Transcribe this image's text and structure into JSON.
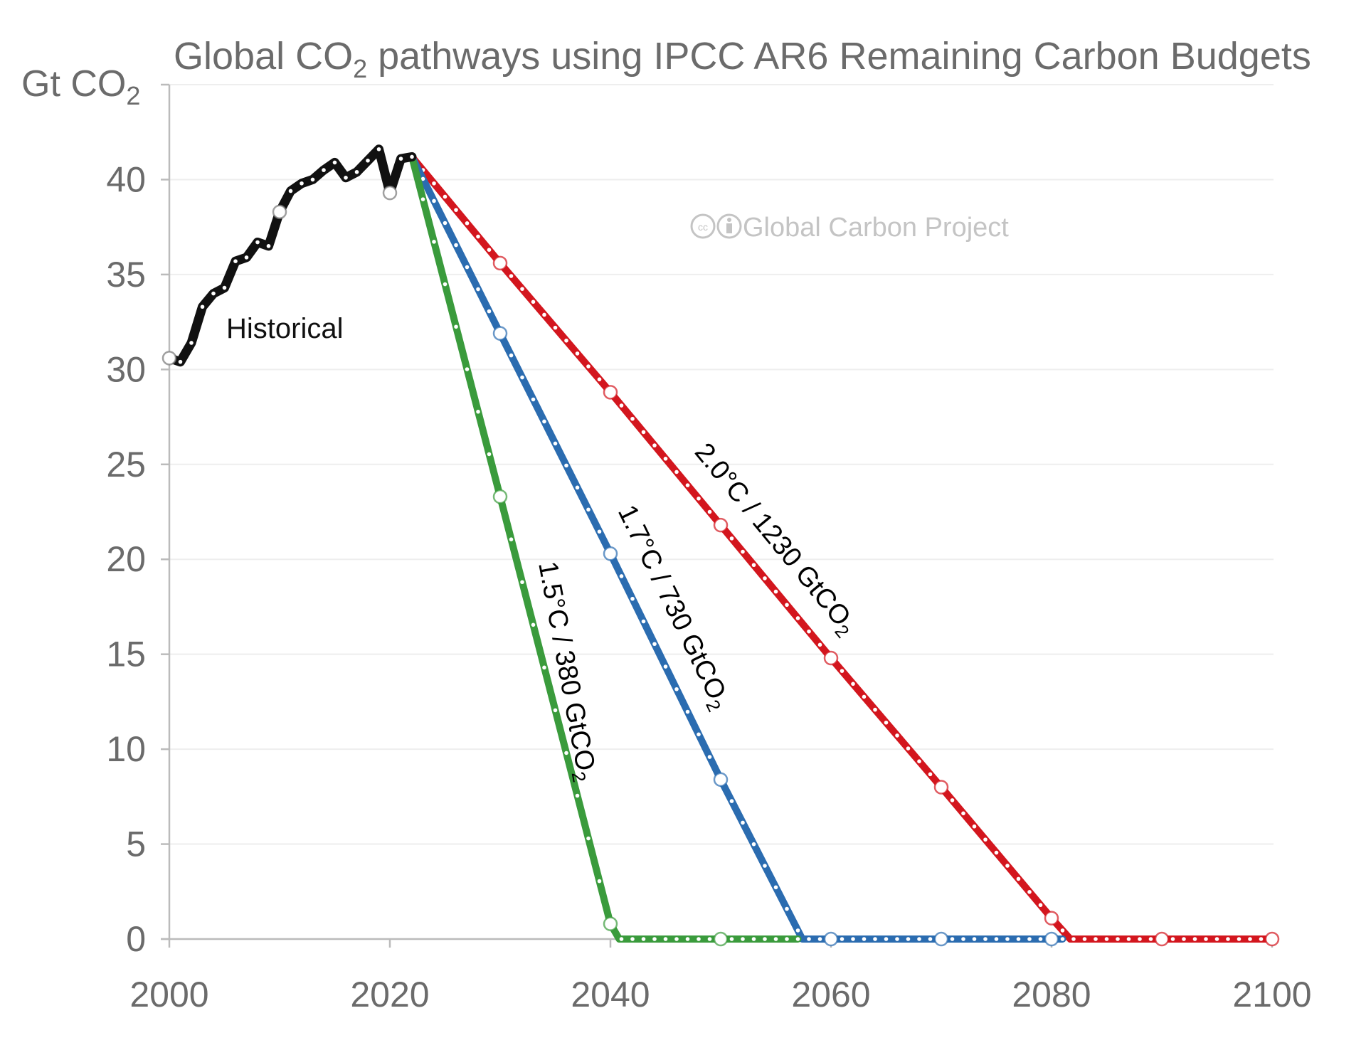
{
  "chart_data": {
    "type": "line",
    "title": "Global CO",
    "title_sub": "2",
    "title_rest": " pathways using IPCC AR6 Remaining Carbon Budgets",
    "ylabel": "Gt CO",
    "ylabel_sub": "2",
    "xlabel": "",
    "xlim": [
      2000,
      2100
    ],
    "ylim": [
      0,
      45
    ],
    "x_ticks": [
      2000,
      2020,
      2040,
      2060,
      2080,
      2100
    ],
    "x_tick_labels": [
      "2000",
      "2020",
      "2040",
      "2060",
      "2080",
      "2100"
    ],
    "y_ticks": [
      0,
      5,
      10,
      15,
      20,
      25,
      30,
      35,
      40
    ],
    "y_tick_labels": [
      "0",
      "5",
      "10",
      "15",
      "20",
      "25",
      "30",
      "35",
      "40"
    ],
    "grid": true,
    "watermark": "Global Carbon Project",
    "series": [
      {
        "name": "Historical",
        "label": "Historical",
        "color": "#111111",
        "x": [
          2000,
          2001,
          2002,
          2003,
          2004,
          2005,
          2006,
          2007,
          2008,
          2009,
          2010,
          2011,
          2012,
          2013,
          2014,
          2015,
          2016,
          2017,
          2018,
          2019,
          2020,
          2021,
          2022
        ],
        "y": [
          30.6,
          30.4,
          31.4,
          33.3,
          34.0,
          34.3,
          35.7,
          35.9,
          36.7,
          36.5,
          38.3,
          39.4,
          39.8,
          40.0,
          40.5,
          40.9,
          40.1,
          40.4,
          41.0,
          41.6,
          39.3,
          41.1,
          41.2
        ],
        "open_markers": [
          2000,
          2010,
          2020
        ]
      },
      {
        "name": "1.5°C / 380 GtCO2",
        "label": "1.5°C / 380 GtCO",
        "label_sub": "2",
        "color": "#3a9b3c",
        "x": [
          2022,
          2030,
          2040,
          2040.8,
          2050,
          2060,
          2070,
          2080,
          2090,
          2100
        ],
        "y": [
          41.2,
          23.3,
          0.8,
          0,
          0,
          0,
          0,
          0,
          0,
          0
        ],
        "open_markers": [
          2030,
          2040,
          2050
        ],
        "drawn_until": 2057
      },
      {
        "name": "1.7°C / 730 GtCO2",
        "label": "1.7°C / 730 GtCO",
        "label_sub": "2",
        "color": "#2b6cb0",
        "x": [
          2022,
          2030,
          2040,
          2050,
          2057.4,
          2060,
          2070,
          2080,
          2090,
          2100
        ],
        "y": [
          41.2,
          31.9,
          20.3,
          8.4,
          0,
          0,
          0,
          0,
          0,
          0
        ],
        "open_markers": [
          2030,
          2040,
          2050,
          2060,
          2070,
          2080
        ],
        "drawn_until": 2081
      },
      {
        "name": "2.0°C / 1230 GtCO2",
        "label": "2.0°C / 1230 GtCO",
        "label_sub": "2",
        "color": "#d3161e",
        "x": [
          2022,
          2030,
          2040,
          2050,
          2060,
          2070,
          2080,
          2081.7,
          2090,
          2100
        ],
        "y": [
          41.2,
          35.6,
          28.8,
          21.8,
          14.8,
          8.0,
          1.1,
          0,
          0,
          0
        ],
        "open_markers": [
          2030,
          2040,
          2050,
          2060,
          2070,
          2080,
          2090,
          2100
        ],
        "drawn_until": 2100
      }
    ]
  }
}
